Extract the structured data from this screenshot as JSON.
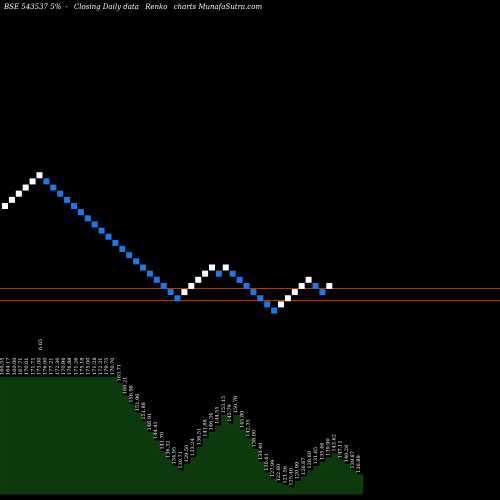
{
  "header": {
    "exchange_symbol": "BSE 543537 5%",
    "title_sep": "-",
    "title_rest": "Closing Daily data",
    "chart_kind": "Renko",
    "site": "charts MunafaSutra.com"
  },
  "colors": {
    "background": "#000000",
    "up_brick": "#ffffff",
    "down_brick": "#1e78e6",
    "level_line": "#c06020",
    "volume_fill": "#0c3a0c",
    "volume_stroke": "#0f4a0f",
    "label_text": "#ffffff"
  },
  "chart_data": {
    "type": "renko",
    "price_axis_labels": false,
    "bricks": [
      {
        "dir": "up",
        "level": 0
      },
      {
        "dir": "up",
        "level": 1
      },
      {
        "dir": "up",
        "level": 2
      },
      {
        "dir": "up",
        "level": 3
      },
      {
        "dir": "up",
        "level": 4
      },
      {
        "dir": "up",
        "level": 5
      },
      {
        "dir": "down",
        "level": 4
      },
      {
        "dir": "down",
        "level": 3
      },
      {
        "dir": "down",
        "level": 2
      },
      {
        "dir": "down",
        "level": 1
      },
      {
        "dir": "down",
        "level": 0
      },
      {
        "dir": "down",
        "level": -1
      },
      {
        "dir": "down",
        "level": -2
      },
      {
        "dir": "down",
        "level": -3
      },
      {
        "dir": "down",
        "level": -4
      },
      {
        "dir": "down",
        "level": -5
      },
      {
        "dir": "down",
        "level": -6
      },
      {
        "dir": "down",
        "level": -7
      },
      {
        "dir": "down",
        "level": -8
      },
      {
        "dir": "down",
        "level": -9
      },
      {
        "dir": "down",
        "level": -10
      },
      {
        "dir": "down",
        "level": -11
      },
      {
        "dir": "down",
        "level": -12
      },
      {
        "dir": "down",
        "level": -13
      },
      {
        "dir": "down",
        "level": -14
      },
      {
        "dir": "down",
        "level": -15
      },
      {
        "dir": "up",
        "level": -14
      },
      {
        "dir": "up",
        "level": -13
      },
      {
        "dir": "up",
        "level": -12
      },
      {
        "dir": "up",
        "level": -11
      },
      {
        "dir": "up",
        "level": -10
      },
      {
        "dir": "down",
        "level": -11
      },
      {
        "dir": "up",
        "level": -10
      },
      {
        "dir": "down",
        "level": -11
      },
      {
        "dir": "down",
        "level": -12
      },
      {
        "dir": "down",
        "level": -13
      },
      {
        "dir": "down",
        "level": -14
      },
      {
        "dir": "down",
        "level": -15
      },
      {
        "dir": "down",
        "level": -16
      },
      {
        "dir": "down",
        "level": -17
      },
      {
        "dir": "up",
        "level": -16
      },
      {
        "dir": "up",
        "level": -15
      },
      {
        "dir": "up",
        "level": -14
      },
      {
        "dir": "up",
        "level": -13
      },
      {
        "dir": "up",
        "level": -12
      },
      {
        "dir": "down",
        "level": -13
      },
      {
        "dir": "down",
        "level": -14
      },
      {
        "dir": "up",
        "level": -13
      }
    ],
    "levels": [
      -13.4,
      -15.4
    ],
    "volume": {
      "values": [
        55,
        55,
        55,
        55,
        55,
        55,
        55,
        55,
        55,
        55,
        55,
        55,
        55,
        55,
        55,
        55,
        55,
        55,
        55,
        52,
        46,
        42,
        38,
        34,
        29,
        25,
        20,
        16,
        13,
        11,
        14,
        17,
        22,
        26,
        29,
        32,
        37,
        33,
        37,
        30,
        26,
        21,
        15,
        10,
        7,
        5,
        4,
        3,
        6,
        8,
        11,
        13,
        15,
        17,
        19,
        16,
        14,
        11,
        9
      ],
      "labels": [
        "160.55",
        "164.17",
        "160.00",
        "167.71",
        "170.01",
        "171.71",
        "173.00",
        "176.00",
        "177.21",
        "172.36",
        "170.96",
        "176.88",
        "171.26",
        "175.18",
        "175.00",
        "171.28",
        "172.31",
        "179.75",
        "170.70",
        "163.71",
        "160.21",
        "156.98",
        "151.96",
        "151.88",
        "146.91",
        "144.41",
        "141.70",
        "136.32",
        "134.95",
        "130.71",
        "129.50",
        "133.24",
        "136.51",
        "141.88",
        "146.34",
        "144.55",
        "153.15",
        "145.79",
        "150.78",
        "145.80",
        "142.35",
        "138.00",
        "134.40",
        "130.61",
        "127.99",
        "122.80",
        "121.56",
        "125.40",
        "120.99",
        "126.67",
        "128.60",
        "131.65",
        "135.46",
        "139.90",
        "143.62",
        "147.11",
        "140.26",
        "139.87",
        "136.89"
      ],
      "extra_label": "6.65",
      "ylim": [
        0,
        55
      ]
    }
  }
}
